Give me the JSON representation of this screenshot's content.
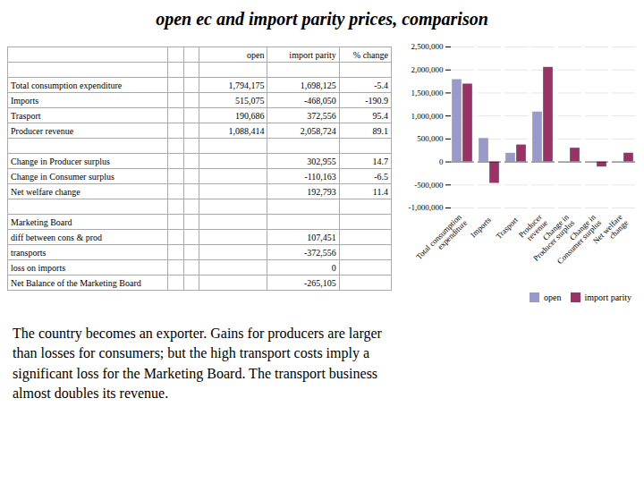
{
  "chart_data": [
    {
      "type": "table",
      "title": "open ec and import parity prices, comparison",
      "columns": [
        null,
        null,
        null,
        "open",
        "import parity",
        "% change"
      ],
      "rows": [
        [
          null,
          null,
          null,
          null,
          null,
          null
        ],
        [
          "Total consumption expenditure",
          null,
          null,
          "1,794,175",
          "1,698,125",
          "-5.4"
        ],
        [
          "Imports",
          null,
          null,
          "515,075",
          "-468,050",
          "-190.9"
        ],
        [
          "Trasport",
          null,
          null,
          "190,686",
          "372,556",
          "95.4"
        ],
        [
          "Producer revenue",
          null,
          null,
          "1,088,414",
          "2,058,724",
          "89.1"
        ],
        [
          null,
          null,
          null,
          null,
          null,
          null
        ],
        [
          "Change in Producer surplus",
          null,
          null,
          null,
          "302,955",
          "14.7"
        ],
        [
          "Change in Consumer surplus",
          null,
          null,
          null,
          "-110,163",
          "-6.5"
        ],
        [
          "Net welfare change",
          null,
          null,
          null,
          "192,793",
          "11.4"
        ],
        [
          null,
          null,
          null,
          null,
          null,
          null
        ],
        [
          "Marketing Board",
          null,
          null,
          null,
          null,
          null
        ],
        [
          "diff between cons & prod",
          null,
          null,
          null,
          "107,451",
          null
        ],
        [
          "transports",
          null,
          null,
          null,
          "-372,556",
          null
        ],
        [
          "loss on imports",
          null,
          null,
          null,
          "0",
          null
        ],
        [
          "Net Balance of the Marketing Board",
          null,
          null,
          null,
          "-265,105",
          null
        ]
      ]
    },
    {
      "type": "bar",
      "categories": [
        "Total consumption\nexpenditure",
        "Imports",
        "Trasport",
        "Producer\nrevenue",
        "Change in\nProducer surplus",
        "Change in\nConsumer surplus",
        "Net welfare\nchange"
      ],
      "series": [
        {
          "name": "open",
          "color": "#9999cc",
          "values": [
            1794175,
            515075,
            190686,
            1088414,
            null,
            null,
            null
          ]
        },
        {
          "name": "import parity",
          "color": "#993366",
          "values": [
            1698125,
            -468050,
            372556,
            2058724,
            302955,
            -110163,
            192793
          ]
        }
      ],
      "ylim": [
        -1000000,
        2500000
      ],
      "yticks": [
        {
          "value": -1000000,
          "label": "-1,000,000"
        },
        {
          "value": -500000,
          "label": "-500,000"
        },
        0,
        {
          "value": 500000,
          "label": "500,000"
        },
        {
          "value": 1000000,
          "label": "1,000,000"
        },
        {
          "value": 1500000,
          "label": "1,500,000"
        },
        {
          "value": 2000000,
          "label": "2,000,000"
        },
        {
          "value": 2500000,
          "label": "2,500,000"
        }
      ],
      "grid": true,
      "legend": "lower right",
      "annotations": [
        "The country becomes an exporter. Gains for producers are larger\nthan losses for consumers; but the high transport costs imply a\nsignificant loss for the Marketing Board. The transport business\nalmost doubles its revenue."
      ]
    }
  ]
}
